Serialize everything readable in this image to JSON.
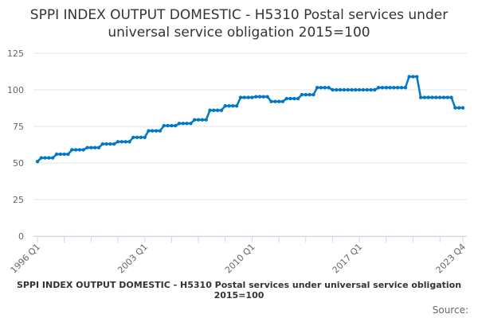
{
  "chart_data": {
    "type": "line",
    "title": "SPPI INDEX OUTPUT DOMESTIC - H5310 Postal services under universal service obligation 2015=100",
    "x_start": "1996 Q1",
    "x_end": "2023 Q4",
    "x_tick_labels": [
      "1996 Q1",
      "2003 Q1",
      "2010 Q1",
      "2017 Q1",
      "2023 Q4"
    ],
    "y_tick_labels": [
      "0",
      "25",
      "50",
      "75",
      "100",
      "125"
    ],
    "ylim": [
      0,
      125
    ],
    "grid": "horizontal",
    "legend_position": "bottom",
    "series": [
      {
        "name": "SPPI INDEX OUTPUT DOMESTIC - H5310 Postal services under universal service obligation 2015=100",
        "color": "#0077c8",
        "values": [
          51,
          53.5,
          53.5,
          53.5,
          53.5,
          56,
          56,
          56,
          56,
          59,
          59,
          59,
          59,
          60.5,
          60.5,
          60.5,
          60.5,
          63,
          63,
          63,
          63,
          64.5,
          64.5,
          64.5,
          64.5,
          67.5,
          67.5,
          67.5,
          67.5,
          72,
          72,
          72,
          72,
          75.5,
          75.5,
          75.5,
          75.5,
          77,
          77,
          77,
          77,
          79.5,
          79.5,
          79.5,
          79.5,
          86,
          86,
          86,
          86,
          89,
          89,
          89,
          89,
          94.8,
          94.8,
          94.8,
          94.8,
          95.3,
          95.3,
          95.3,
          95.3,
          92,
          92,
          92,
          92,
          94,
          94,
          94,
          94,
          96.7,
          96.7,
          96.7,
          96.7,
          101.5,
          101.5,
          101.5,
          101.5,
          100,
          100,
          100,
          100,
          100,
          100,
          100,
          100,
          100,
          100,
          100,
          100,
          101.5,
          101.5,
          101.5,
          101.5,
          101.5,
          101.5,
          101.5,
          101.5,
          109,
          109,
          109,
          94.8,
          94.8,
          94.8,
          94.8,
          94.8,
          94.8,
          94.8,
          94.8,
          94.8,
          87.7,
          87.7,
          87.7
        ]
      }
    ]
  },
  "footer": {
    "source_label": "Source:"
  }
}
